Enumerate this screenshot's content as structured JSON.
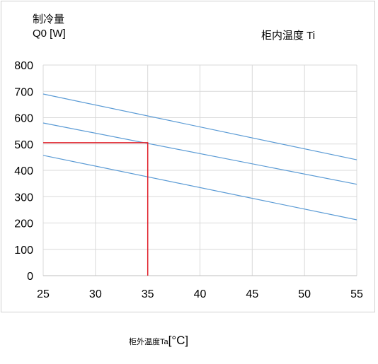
{
  "chart_data": {
    "type": "line",
    "y_title_line1": "制冷量",
    "y_title_line2": "Q0 [W]",
    "legend_title": "柜内温度  Ti",
    "x_label_name": "柜外温度Ta",
    "x_label_unit": "[°C]",
    "xlim": [
      25,
      55
    ],
    "ylim": [
      0,
      800
    ],
    "x_ticks": [
      25,
      30,
      35,
      40,
      45,
      50,
      55
    ],
    "y_ticks": [
      0,
      100,
      200,
      300,
      400,
      500,
      600,
      700,
      800
    ],
    "grid": true,
    "series": [
      {
        "values": [
          [
            25,
            690
          ],
          [
            55,
            440
          ]
        ],
        "color": "#5b9bd5"
      },
      {
        "values": [
          [
            25,
            580
          ],
          [
            55,
            347
          ]
        ],
        "color": "#5b9bd5"
      },
      {
        "values": [
          [
            25,
            457
          ],
          [
            55,
            212
          ]
        ],
        "color": "#5b9bd5"
      }
    ],
    "reference_lines": [
      {
        "points": [
          [
            25,
            505
          ],
          [
            35,
            505
          ],
          [
            35,
            0
          ]
        ],
        "color": "#e0202a"
      }
    ]
  }
}
